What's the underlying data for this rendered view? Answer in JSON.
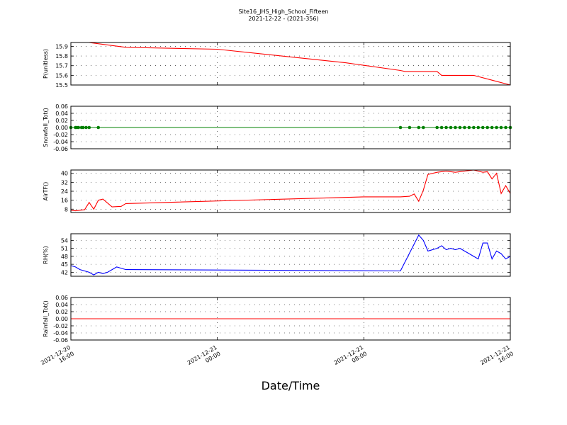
{
  "figure": {
    "title_line1": "Site16_JHS_High_School_Fifteen",
    "title_line2": "2021-12-22 - (2021-356)",
    "xlabel": "Date/Time",
    "x_ticks": [
      {
        "value": "2021-12-20 16:00",
        "line1": "2021-12-20",
        "line2": "16:00"
      },
      {
        "value": "2021-12-21 00:00",
        "line1": "2021-12-21",
        "line2": "00:00"
      },
      {
        "value": "2021-12-21 08:00",
        "line1": "2021-12-21",
        "line2": "08:00"
      },
      {
        "value": "2021-12-21 16:00",
        "line1": "2021-12-21",
        "line2": "16:00"
      }
    ],
    "x_range": [
      "2021-12-20 16:00",
      "2021-12-21 16:00"
    ]
  },
  "chart_data": [
    {
      "type": "line",
      "ylabel": "P(unitless)",
      "ylim": [
        15.5,
        15.94
      ],
      "yticks": [
        15.5,
        15.6,
        15.7,
        15.8,
        15.9
      ],
      "tick_decimals": 1,
      "color": "#ff0000",
      "marker": false,
      "grid": true,
      "x": [
        "2021-12-20 16:00",
        "2021-12-20 16:15",
        "2021-12-20 17:00",
        "2021-12-20 19:00",
        "2021-12-21 00:00",
        "2021-12-21 07:00",
        "2021-12-21 10:00",
        "2021-12-21 10:15",
        "2021-12-21 12:00",
        "2021-12-21 12:15",
        "2021-12-21 14:00",
        "2021-12-21 15:00",
        "2021-12-21 16:00"
      ],
      "y": [
        15.94,
        15.94,
        15.94,
        15.89,
        15.87,
        15.73,
        15.65,
        15.64,
        15.64,
        15.6,
        15.6,
        15.55,
        15.5
      ]
    },
    {
      "type": "scatter",
      "ylabel": "Snowfall_Tot()",
      "ylim": [
        -0.06,
        0.06
      ],
      "yticks": [
        -0.06,
        -0.04,
        -0.02,
        0.0,
        0.02,
        0.04,
        0.06
      ],
      "tick_decimals": 2,
      "color": "#008000",
      "line": true,
      "marker": true,
      "grid": true,
      "x": [
        "2021-12-20 16:00",
        "2021-12-20 16:15",
        "2021-12-20 16:20",
        "2021-12-20 16:25",
        "2021-12-20 16:35",
        "2021-12-20 16:40",
        "2021-12-20 16:50",
        "2021-12-20 17:00",
        "2021-12-20 17:30",
        "2021-12-21 10:00",
        "2021-12-21 10:30",
        "2021-12-21 11:00",
        "2021-12-21 11:15",
        "2021-12-21 12:00",
        "2021-12-21 12:15",
        "2021-12-21 12:30",
        "2021-12-21 12:45",
        "2021-12-21 13:00",
        "2021-12-21 13:15",
        "2021-12-21 13:30",
        "2021-12-21 13:45",
        "2021-12-21 14:00",
        "2021-12-21 14:15",
        "2021-12-21 14:30",
        "2021-12-21 14:45",
        "2021-12-21 15:00",
        "2021-12-21 15:15",
        "2021-12-21 15:30",
        "2021-12-21 15:45",
        "2021-12-21 16:00"
      ],
      "y": [
        0,
        0,
        0,
        0,
        0,
        0,
        0,
        0,
        0,
        0,
        0,
        0,
        0,
        0,
        0,
        0,
        0,
        0,
        0,
        0,
        0,
        0,
        0,
        0,
        0,
        0,
        0,
        0,
        0,
        0
      ]
    },
    {
      "type": "line",
      "ylabel": "AirTF()",
      "ylim": [
        5,
        43
      ],
      "yticks": [
        8,
        16,
        24,
        32,
        40
      ],
      "tick_decimals": 0,
      "color": "#ff0000",
      "marker": false,
      "grid": true,
      "x": [
        "2021-12-20 16:00",
        "2021-12-20 16:15",
        "2021-12-20 16:30",
        "2021-12-20 16:45",
        "2021-12-20 17:00",
        "2021-12-20 17:15",
        "2021-12-20 17:30",
        "2021-12-20 17:45",
        "2021-12-20 18:15",
        "2021-12-20 18:45",
        "2021-12-20 19:00",
        "2021-12-21 08:00",
        "2021-12-21 10:00",
        "2021-12-21 10:30",
        "2021-12-21 10:45",
        "2021-12-21 11:00",
        "2021-12-21 11:15",
        "2021-12-21 11:30",
        "2021-12-21 12:00",
        "2021-12-21 12:30",
        "2021-12-21 13:00",
        "2021-12-21 13:30",
        "2021-12-21 14:00",
        "2021-12-21 14:15",
        "2021-12-21 14:30",
        "2021-12-21 14:45",
        "2021-12-21 15:00",
        "2021-12-21 15:15",
        "2021-12-21 15:30",
        "2021-12-21 15:45",
        "2021-12-21 16:00"
      ],
      "y": [
        7,
        6.5,
        7,
        7.5,
        14,
        8,
        16,
        17,
        10,
        10.5,
        13,
        19,
        19,
        19.5,
        21.5,
        15,
        25,
        39,
        41,
        42,
        41,
        42,
        43,
        42,
        41,
        41.5,
        35,
        40,
        22,
        29,
        22
      ]
    },
    {
      "type": "line",
      "ylabel": "RH(%)",
      "ylim": [
        40.5,
        56.5
      ],
      "yticks": [
        42,
        45,
        48,
        51,
        54
      ],
      "tick_decimals": 0,
      "color": "#0000ff",
      "marker": false,
      "grid": true,
      "x": [
        "2021-12-20 16:00",
        "2021-12-20 16:15",
        "2021-12-20 16:30",
        "2021-12-20 17:00",
        "2021-12-20 17:15",
        "2021-12-20 17:30",
        "2021-12-20 17:45",
        "2021-12-20 18:00",
        "2021-12-20 18:30",
        "2021-12-20 19:00",
        "2021-12-21 10:00",
        "2021-12-21 11:00",
        "2021-12-21 11:15",
        "2021-12-21 11:30",
        "2021-12-21 12:00",
        "2021-12-21 12:15",
        "2021-12-21 12:30",
        "2021-12-21 12:45",
        "2021-12-21 13:00",
        "2021-12-21 13:15",
        "2021-12-21 13:30",
        "2021-12-21 13:45",
        "2021-12-21 14:00",
        "2021-12-21 14:15",
        "2021-12-21 14:30",
        "2021-12-21 14:45",
        "2021-12-21 15:00",
        "2021-12-21 15:15",
        "2021-12-21 15:30",
        "2021-12-21 15:45",
        "2021-12-21 16:00"
      ],
      "y": [
        44.5,
        44,
        43,
        42,
        41,
        42,
        41.5,
        42,
        44,
        43,
        42.5,
        56,
        54,
        50,
        51,
        52,
        50.5,
        51,
        50.5,
        51,
        50,
        49,
        48,
        47,
        53,
        53,
        47,
        50,
        49,
        47,
        48
      ]
    },
    {
      "type": "line",
      "ylabel": "Rainfall_Tot()",
      "ylim": [
        -0.06,
        0.06
      ],
      "yticks": [
        -0.06,
        -0.04,
        -0.02,
        0.0,
        0.02,
        0.04,
        0.06
      ],
      "tick_decimals": 2,
      "color": "#ff0000",
      "marker": false,
      "grid": true,
      "x": [
        "2021-12-20 16:00",
        "2021-12-21 16:00"
      ],
      "y": [
        0,
        0
      ]
    }
  ]
}
